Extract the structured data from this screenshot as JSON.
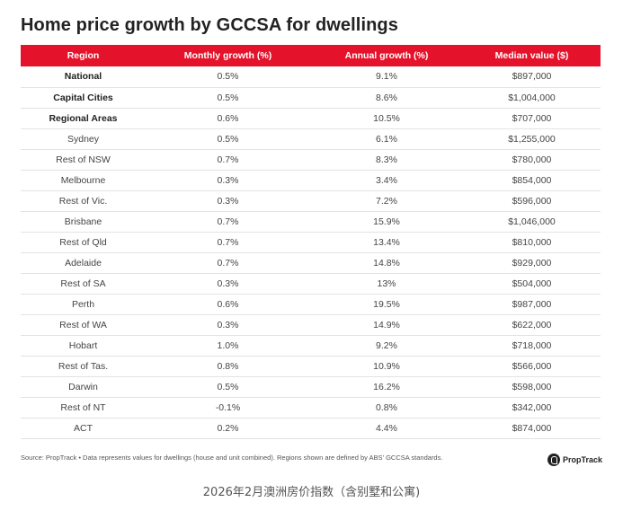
{
  "chart_data": {
    "type": "table",
    "title": "Home price growth by GCCSA for dwellings",
    "columns": [
      "Region",
      "Monthly growth (%)",
      "Annual growth (%)",
      "Median value ($)"
    ],
    "rows": [
      {
        "region": "National",
        "monthly": "0.5%",
        "annual": "9.1%",
        "median": "$897,000",
        "bold": true
      },
      {
        "region": "Capital Cities",
        "monthly": "0.5%",
        "annual": "8.6%",
        "median": "$1,004,000",
        "bold": true
      },
      {
        "region": "Regional Areas",
        "monthly": "0.6%",
        "annual": "10.5%",
        "median": "$707,000",
        "bold": true
      },
      {
        "region": "Sydney",
        "monthly": "0.5%",
        "annual": "6.1%",
        "median": "$1,255,000",
        "bold": false
      },
      {
        "region": "Rest of NSW",
        "monthly": "0.7%",
        "annual": "8.3%",
        "median": "$780,000",
        "bold": false
      },
      {
        "region": "Melbourne",
        "monthly": "0.3%",
        "annual": "3.4%",
        "median": "$854,000",
        "bold": false
      },
      {
        "region": "Rest of Vic.",
        "monthly": "0.3%",
        "annual": "7.2%",
        "median": "$596,000",
        "bold": false
      },
      {
        "region": "Brisbane",
        "monthly": "0.7%",
        "annual": "15.9%",
        "median": "$1,046,000",
        "bold": false
      },
      {
        "region": "Rest of Qld",
        "monthly": "0.7%",
        "annual": "13.4%",
        "median": "$810,000",
        "bold": false
      },
      {
        "region": "Adelaide",
        "monthly": "0.7%",
        "annual": "14.8%",
        "median": "$929,000",
        "bold": false
      },
      {
        "region": "Rest of SA",
        "monthly": "0.3%",
        "annual": "13%",
        "median": "$504,000",
        "bold": false
      },
      {
        "region": "Perth",
        "monthly": "0.6%",
        "annual": "19.5%",
        "median": "$987,000",
        "bold": false
      },
      {
        "region": "Rest of WA",
        "monthly": "0.3%",
        "annual": "14.9%",
        "median": "$622,000",
        "bold": false
      },
      {
        "region": "Hobart",
        "monthly": "1.0%",
        "annual": "9.2%",
        "median": "$718,000",
        "bold": false
      },
      {
        "region": "Rest of Tas.",
        "monthly": "0.8%",
        "annual": "10.9%",
        "median": "$566,000",
        "bold": false
      },
      {
        "region": "Darwin",
        "monthly": "0.5%",
        "annual": "16.2%",
        "median": "$598,000",
        "bold": false
      },
      {
        "region": "Rest of NT",
        "monthly": "-0.1%",
        "annual": "0.8%",
        "median": "$342,000",
        "bold": false
      },
      {
        "region": "ACT",
        "monthly": "0.2%",
        "annual": "4.4%",
        "median": "$874,000",
        "bold": false
      }
    ]
  },
  "source_note": "Source: PropTrack • Data represents values for dwellings (house and unit combined). Regions shown are defined by ABS' GCCSA standards.",
  "logo_text": "PropTrack",
  "caption": "2026年2月澳洲房价指数（含别墅和公寓)",
  "colors": {
    "header_bg": "#e4132b",
    "header_text": "#ffffff"
  }
}
